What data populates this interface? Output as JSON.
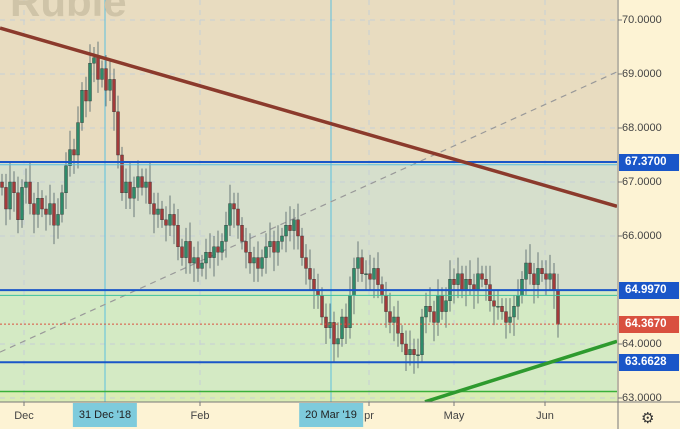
{
  "watermark": "Ruble",
  "colors": {
    "up": "#2e8b6a",
    "down": "#a33a3a",
    "level": "#1a56c8",
    "current": "#d9503f",
    "trend_down": "#8b3a2c",
    "trend_up": "#2e9a2e",
    "zone_top": "#e8dcc0",
    "zone_mid": "#d6dfcc",
    "zone_low": "#d4eac4"
  },
  "price_axis": {
    "ticks": [
      "70.0000",
      "69.0000",
      "68.0000",
      "67.0000",
      "66.0000",
      "64.0000",
      "63.0000"
    ]
  },
  "levels": [
    {
      "label": "67.3700",
      "value": 67.37
    },
    {
      "label": "64.9970",
      "value": 64.997
    },
    {
      "label": "63.6628",
      "value": 63.6628
    }
  ],
  "current_price": {
    "label": "64.3670",
    "value": 64.367
  },
  "time_axis": {
    "labels": [
      "Dec",
      "Feb",
      "pr",
      "May",
      "Jun"
    ]
  },
  "crosshair_dates": [
    "31 Dec '18",
    "20 Mar '19"
  ],
  "settings_icon": "gear-icon",
  "chart_data": {
    "type": "candlestick",
    "ylim": [
      62.8,
      70.4
    ],
    "close": [
      66.9,
      66.5,
      67.0,
      66.8,
      66.3,
      66.9,
      67.0,
      66.6,
      66.4,
      66.7,
      66.5,
      66.4,
      66.6,
      66.2,
      66.4,
      66.8,
      67.3,
      67.6,
      67.5,
      68.1,
      68.7,
      68.5,
      69.2,
      69.3,
      68.9,
      69.1,
      68.7,
      68.9,
      68.3,
      67.5,
      66.8,
      67.0,
      66.7,
      66.9,
      67.1,
      66.9,
      67.0,
      66.6,
      66.4,
      66.5,
      66.3,
      66.2,
      66.4,
      66.2,
      65.8,
      65.6,
      65.9,
      65.5,
      65.6,
      65.4,
      65.5,
      65.7,
      65.6,
      65.8,
      65.7,
      65.9,
      66.2,
      66.6,
      66.5,
      66.2,
      65.9,
      65.7,
      65.5,
      65.6,
      65.4,
      65.6,
      65.8,
      65.9,
      65.7,
      65.9,
      66.0,
      66.2,
      66.1,
      66.3,
      66.0,
      65.6,
      65.4,
      65.2,
      65.0,
      64.9,
      64.5,
      64.3,
      64.4,
      64.0,
      64.1,
      64.5,
      64.3,
      64.9,
      65.4,
      65.6,
      65.3,
      65.3,
      65.2,
      65.4,
      65.1,
      64.9,
      64.6,
      64.4,
      64.5,
      64.2,
      64.0,
      63.8,
      63.9,
      63.8,
      63.8,
      64.5,
      64.7,
      64.6,
      64.4,
      64.9,
      64.6,
      64.8,
      65.2,
      65.1,
      65.3,
      65.0,
      65.2,
      65.1,
      65.0,
      65.3,
      65.2,
      65.1,
      64.8,
      64.7,
      64.7,
      64.6,
      64.4,
      64.5,
      64.7,
      64.9,
      65.2,
      65.5,
      65.3,
      65.1,
      65.4,
      65.3,
      65.2,
      65.3,
      65.0,
      64.367
    ],
    "trendlines": [
      {
        "kind": "resistance",
        "from_price": 69.85,
        "to_price": 66.55
      },
      {
        "kind": "support",
        "from_price": 62.93,
        "to_price": 64.05
      },
      {
        "kind": "dashed",
        "from_price": 63.85,
        "to_price": 69.04
      }
    ]
  }
}
